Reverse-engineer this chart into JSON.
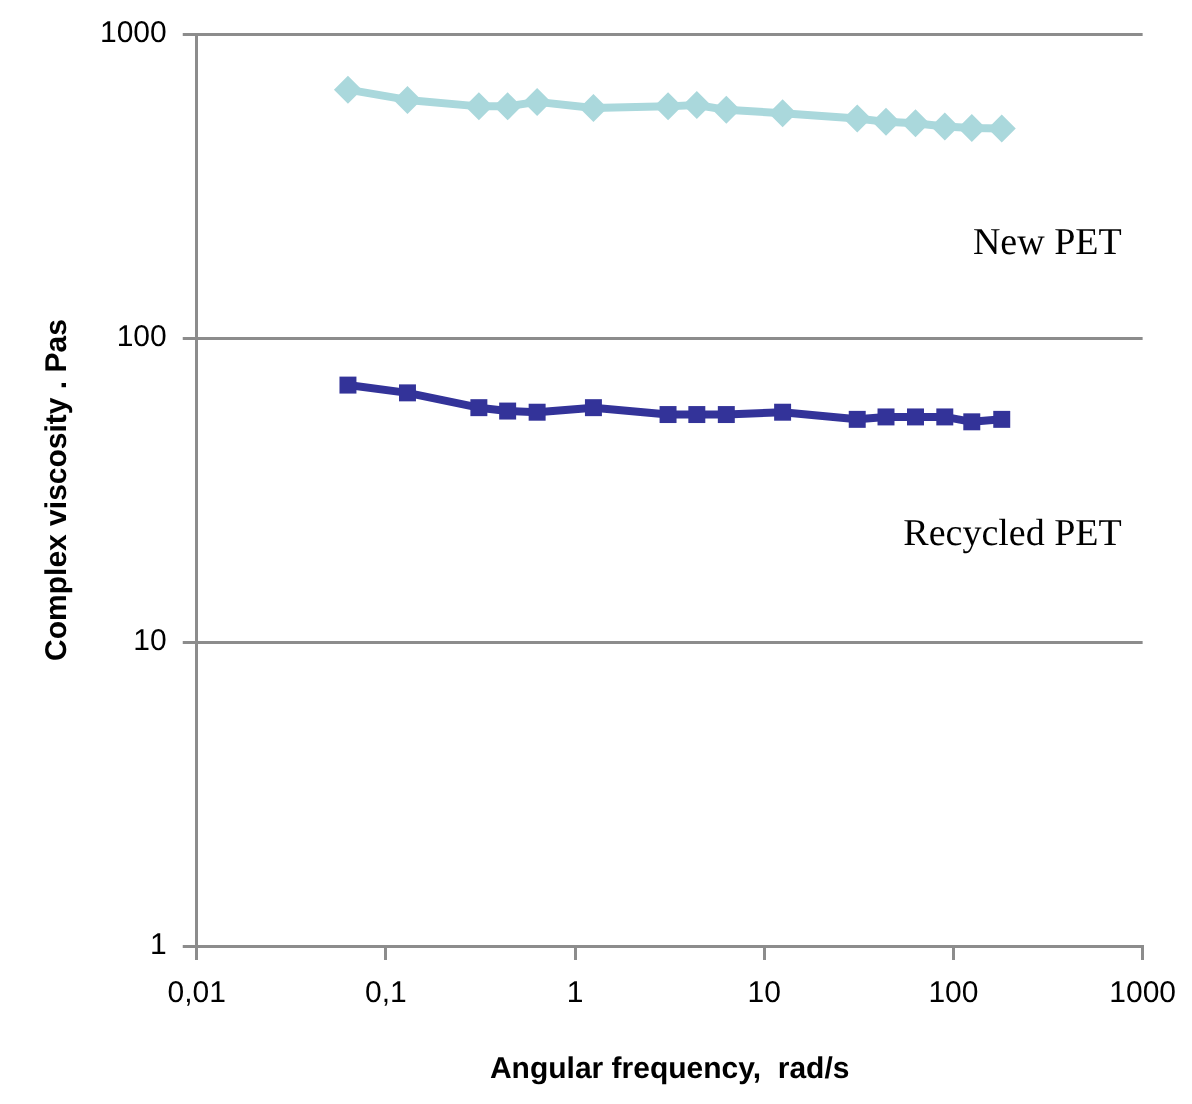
{
  "chart_data": {
    "type": "line",
    "xlabel": "Angular frequency,  rad/s",
    "ylabel": "Complex viscosity . Pas",
    "log": "xy",
    "grid": "y",
    "legend": false,
    "line_style": "solid",
    "xlim": [
      0.01,
      1000
    ],
    "xticks": [
      {
        "value": 0.01,
        "label": "0,01"
      },
      {
        "value": 0.1,
        "label": "0,1"
      },
      1,
      10,
      100,
      1000
    ],
    "ylim": [
      1,
      1000
    ],
    "yticks": [
      1,
      10,
      100,
      1000
    ],
    "x": [
      0.063,
      0.13,
      0.31,
      0.44,
      0.63,
      1.25,
      3.1,
      4.4,
      6.3,
      12.5,
      31,
      44,
      63,
      90,
      125,
      180
    ],
    "series": [
      {
        "name": "New PET",
        "color": "#aad8dc",
        "marker": "diamond",
        "values": [
          656,
          607,
          578,
          578,
          598,
          571,
          578,
          584,
          563,
          549,
          527,
          514,
          509,
          496,
          491,
          489
        ]
      },
      {
        "name": "Recycled PET",
        "color": "#333399",
        "marker": "square",
        "values": [
          70,
          66,
          59,
          57.5,
          57,
          59,
          56,
          56,
          56,
          57,
          54,
          55,
          55,
          55,
          53,
          54
        ]
      }
    ]
  }
}
